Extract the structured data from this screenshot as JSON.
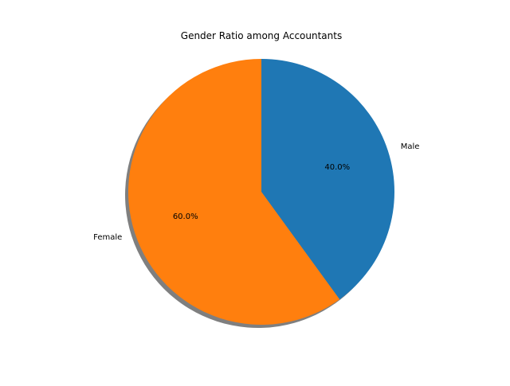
{
  "chart_data": {
    "type": "pie",
    "title": "Gender Ratio among Accountants",
    "labels": [
      "Male",
      "Female"
    ],
    "values": [
      40,
      60
    ],
    "autopct": [
      "40.0%",
      "60.0%"
    ],
    "colors": [
      "#1f77b4",
      "#ff7f0e"
    ],
    "start_angle_deg": 90,
    "shadow": true
  }
}
